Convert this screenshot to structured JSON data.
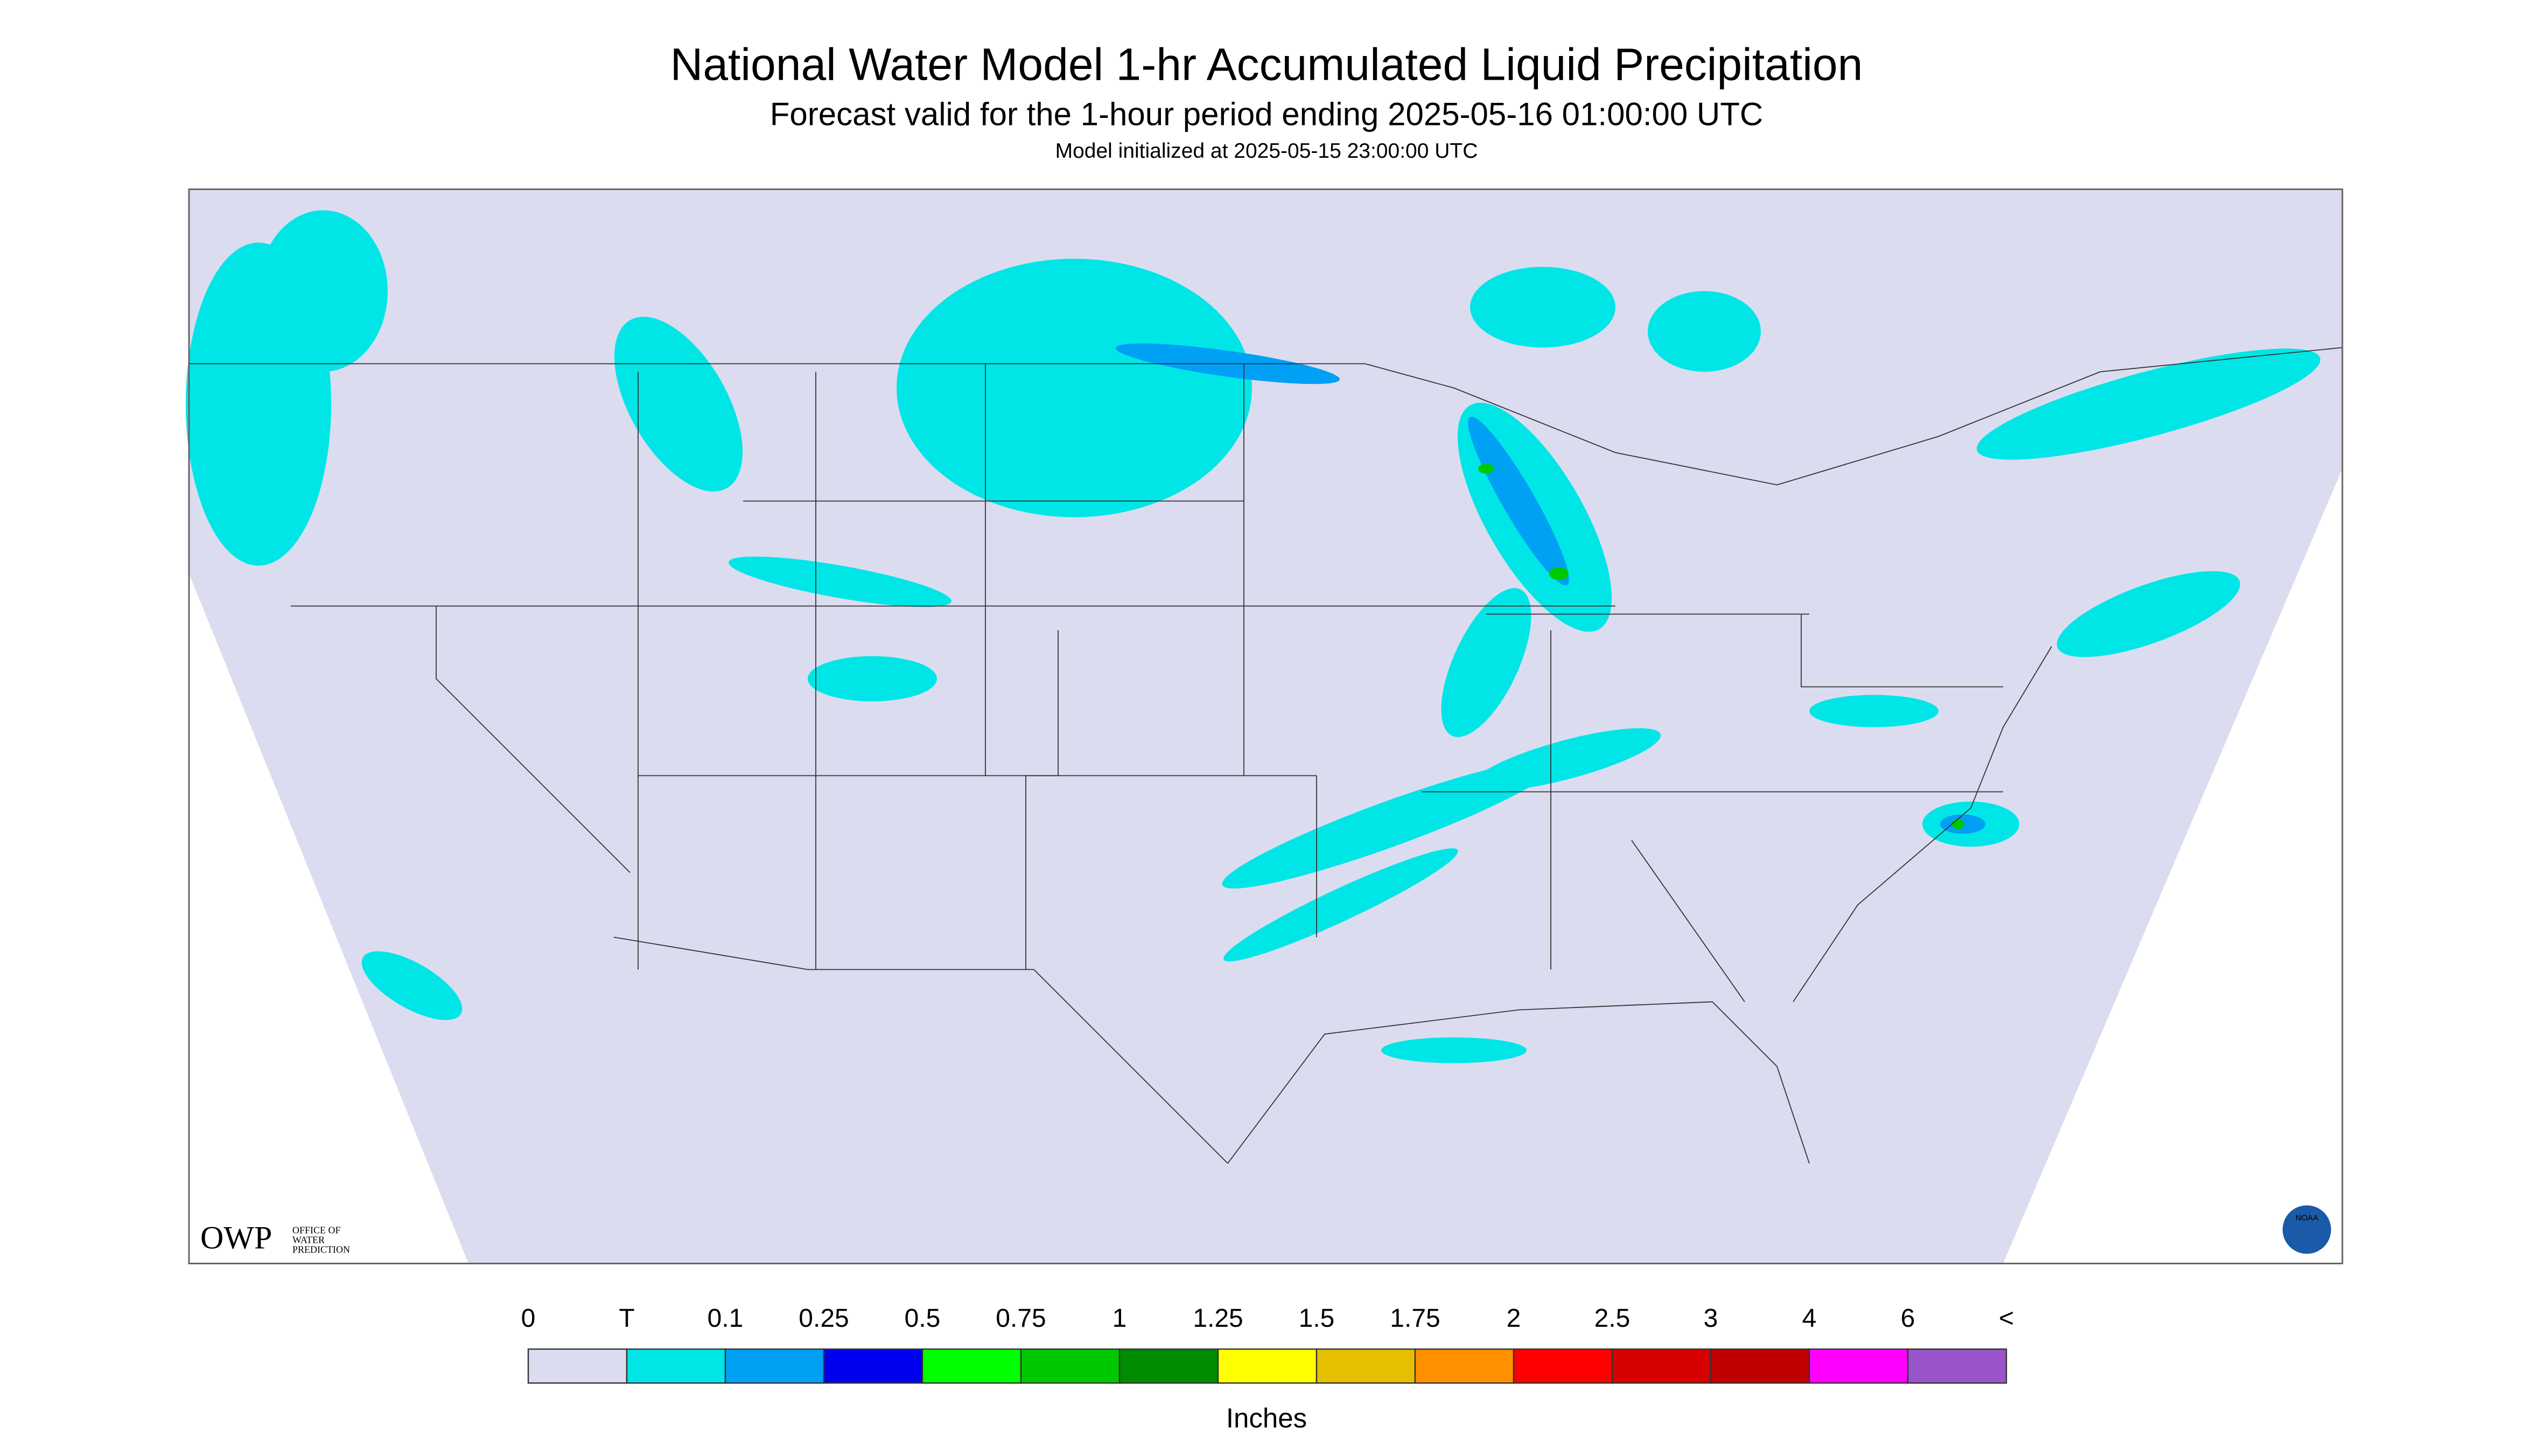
{
  "header": {
    "title": "National Water Model 1-hr Accumulated Liquid Precipitation",
    "subtitle": "Forecast valid for the 1-hour period ending 2025-05-16 01:00:00 UTC",
    "initialized": "Model initialized at 2025-05-15 23:00:00 UTC"
  },
  "logos": {
    "owp": "OWP",
    "owp_text": [
      "OFFICE OF",
      "WATER",
      "PREDICTION"
    ],
    "noaa": "NOAA"
  },
  "legend": {
    "labels": [
      "0",
      "T",
      "0.1",
      "0.25",
      "0.5",
      "0.75",
      "1",
      "1.25",
      "1.5",
      "1.75",
      "2",
      "2.5",
      "3",
      "4",
      "6",
      "<"
    ],
    "colors": [
      "#dcdcf0",
      "#00e6e6",
      "#00a0f5",
      "#0000f0",
      "#00ff00",
      "#00c800",
      "#008c00",
      "#ffff00",
      "#e6c000",
      "#ff9000",
      "#ff0000",
      "#d70000",
      "#c00000",
      "#ff00ff",
      "#9955c9"
    ],
    "unit": "Inches"
  }
}
